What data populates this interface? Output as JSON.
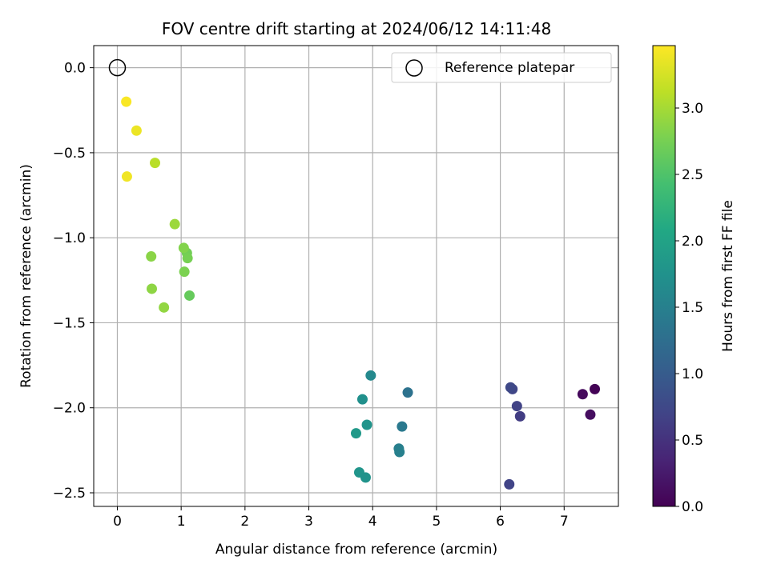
{
  "chart_data": {
    "type": "scatter",
    "title": "FOV centre drift starting at 2024/06/12 14:11:48",
    "xlabel": "Angular distance from reference (arcmin)",
    "ylabel": "Rotation from reference (arcmin)",
    "xlim": [
      -0.37,
      7.85
    ],
    "ylim": [
      -2.58,
      0.13
    ],
    "xticks": [
      0,
      1,
      2,
      3,
      4,
      5,
      6,
      7
    ],
    "xtick_labels": [
      "0",
      "1",
      "2",
      "3",
      "4",
      "5",
      "6",
      "7"
    ],
    "yticks": [
      0.0,
      -0.5,
      -1.0,
      -1.5,
      -2.0,
      -2.5
    ],
    "ytick_labels": [
      "0.0",
      "−0.5",
      "−1.0",
      "−1.5",
      "−2.0",
      "−2.5"
    ],
    "grid": true,
    "legend": {
      "placement": "top-right",
      "entries": [
        {
          "label": "Reference platepar",
          "marker": "open-circle"
        }
      ]
    },
    "reference_point": {
      "x": 0.0,
      "y": 0.0
    },
    "colorbar": {
      "label": "Hours from first FF file",
      "colormap": "viridis",
      "range": [
        0.0,
        3.47
      ],
      "ticks": [
        0.0,
        0.5,
        1.0,
        1.5,
        2.0,
        2.5,
        3.0
      ],
      "tick_labels": [
        "0.0",
        "0.5",
        "1.0",
        "1.5",
        "2.0",
        "2.5",
        "3.0"
      ]
    },
    "points": [
      {
        "x": 7.48,
        "y": -1.89,
        "c": 0.02
      },
      {
        "x": 7.29,
        "y": -1.92,
        "c": 0.08
      },
      {
        "x": 7.41,
        "y": -2.04,
        "c": 0.12
      },
      {
        "x": 6.31,
        "y": -2.05,
        "c": 0.62
      },
      {
        "x": 6.26,
        "y": -1.99,
        "c": 0.68
      },
      {
        "x": 6.19,
        "y": -1.89,
        "c": 0.72
      },
      {
        "x": 6.16,
        "y": -1.88,
        "c": 0.76
      },
      {
        "x": 6.14,
        "y": -2.45,
        "c": 0.7
      },
      {
        "x": 4.55,
        "y": -1.91,
        "c": 1.3
      },
      {
        "x": 4.46,
        "y": -2.11,
        "c": 1.4
      },
      {
        "x": 4.41,
        "y": -2.24,
        "c": 1.48
      },
      {
        "x": 4.42,
        "y": -2.26,
        "c": 1.5
      },
      {
        "x": 3.97,
        "y": -1.81,
        "c": 1.62
      },
      {
        "x": 3.84,
        "y": -1.95,
        "c": 1.72
      },
      {
        "x": 3.91,
        "y": -2.1,
        "c": 1.78
      },
      {
        "x": 3.74,
        "y": -2.15,
        "c": 1.85
      },
      {
        "x": 3.79,
        "y": -2.38,
        "c": 1.8
      },
      {
        "x": 3.89,
        "y": -2.41,
        "c": 1.76
      },
      {
        "x": 1.13,
        "y": -1.34,
        "c": 2.65
      },
      {
        "x": 1.09,
        "y": -1.09,
        "c": 2.72
      },
      {
        "x": 1.1,
        "y": -1.12,
        "c": 2.75
      },
      {
        "x": 1.05,
        "y": -1.2,
        "c": 2.78
      },
      {
        "x": 1.04,
        "y": -1.06,
        "c": 2.82
      },
      {
        "x": 0.73,
        "y": -1.41,
        "c": 2.9
      },
      {
        "x": 0.54,
        "y": -1.3,
        "c": 2.88
      },
      {
        "x": 0.53,
        "y": -1.11,
        "c": 2.86
      },
      {
        "x": 0.9,
        "y": -0.92,
        "c": 2.95
      },
      {
        "x": 0.59,
        "y": -0.56,
        "c": 3.1
      },
      {
        "x": 0.15,
        "y": -0.64,
        "c": 3.4
      },
      {
        "x": 0.3,
        "y": -0.37,
        "c": 3.38
      },
      {
        "x": 0.14,
        "y": -0.2,
        "c": 3.45
      }
    ]
  }
}
